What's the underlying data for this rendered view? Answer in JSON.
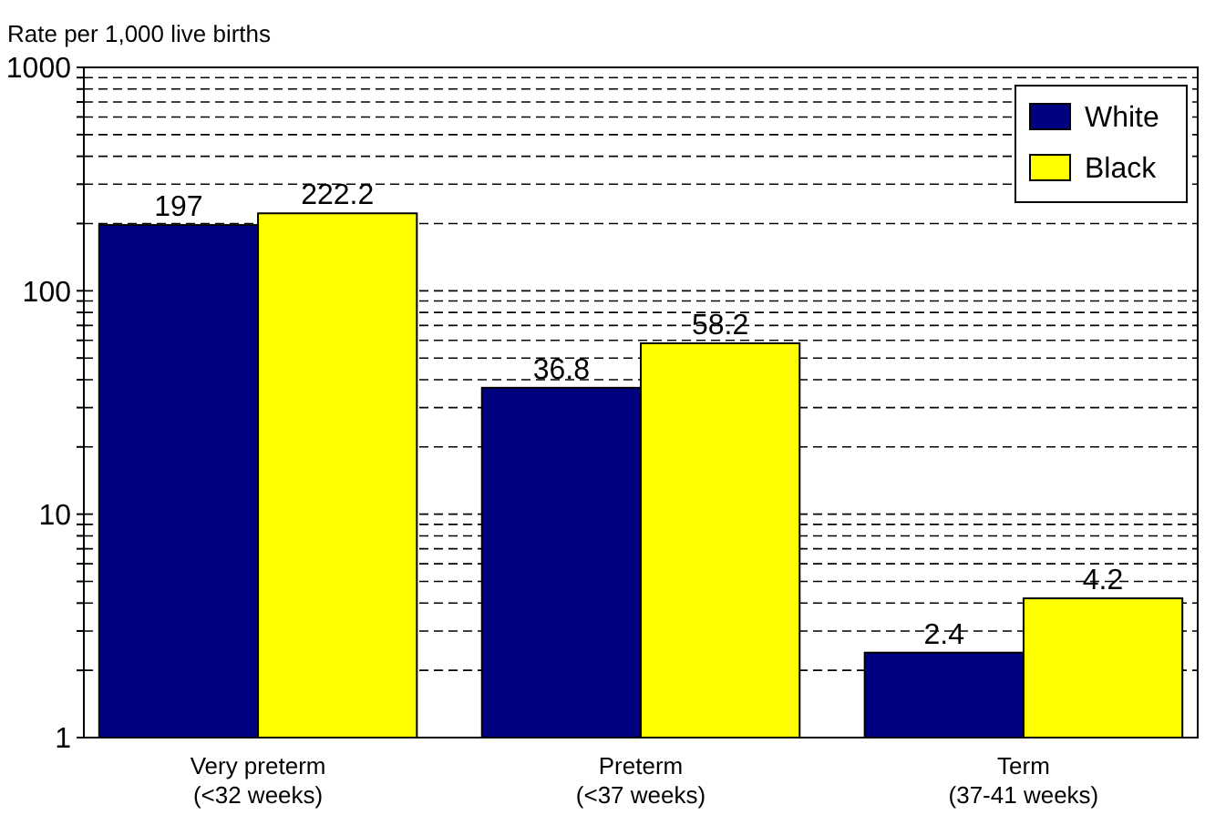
{
  "chart_data": {
    "type": "bar",
    "ylabel": "Rate per 1,000 live births",
    "categories": [
      "Very preterm\n(<32 weeks)",
      "Preterm\n(<37 weeks)",
      "Term\n(37-41 weeks)"
    ],
    "series": [
      {
        "name": "White",
        "color": "#000080",
        "values": [
          197,
          36.8,
          2.4
        ]
      },
      {
        "name": "Black",
        "color": "#ffff00",
        "values": [
          222.2,
          58.2,
          4.2
        ]
      }
    ],
    "log": true,
    "ylim": [
      1,
      1000
    ],
    "yticks": [
      1,
      {
        "value": 2,
        "label": null
      },
      {
        "value": 3,
        "label": null
      },
      {
        "value": 4,
        "label": null
      },
      {
        "value": 5,
        "label": null
      },
      {
        "value": 6,
        "label": null
      },
      {
        "value": 7,
        "label": null
      },
      {
        "value": 8,
        "label": null
      },
      {
        "value": 9,
        "label": null
      },
      10,
      {
        "value": 20,
        "label": null
      },
      {
        "value": 30,
        "label": null
      },
      {
        "value": 40,
        "label": null
      },
      {
        "value": 50,
        "label": null
      },
      {
        "value": 60,
        "label": null
      },
      {
        "value": 70,
        "label": null
      },
      {
        "value": 80,
        "label": null
      },
      {
        "value": 90,
        "label": null
      },
      100,
      {
        "value": 200,
        "label": null
      },
      {
        "value": 300,
        "label": null
      },
      {
        "value": 400,
        "label": null
      },
      {
        "value": 500,
        "label": null
      },
      {
        "value": 600,
        "label": null
      },
      {
        "value": 700,
        "label": null
      },
      {
        "value": 800,
        "label": null
      },
      {
        "value": 900,
        "label": null
      },
      1000
    ],
    "grid": "y",
    "data_labels": true,
    "legend": "top right"
  }
}
